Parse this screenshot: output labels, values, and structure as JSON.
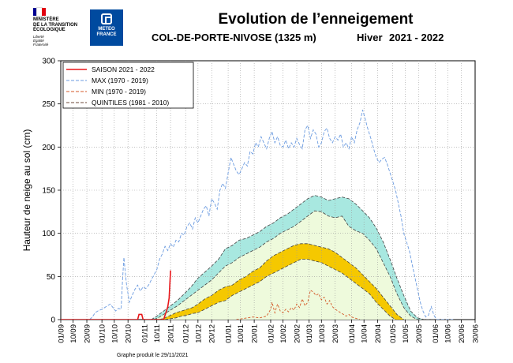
{
  "header": {
    "rf_lines": "MINISTÈRE\nDE LA TRANSITION\nÉCOLOGIQUE",
    "rf_motto": "Liberté\nÉgalité\nFraternité",
    "mf_label": "METEO\nFRANCE",
    "title": "Evolution de l’enneigement",
    "station": "COL-DE-PORTE-NIVOSE (1325 m)",
    "season_label": "Hiver",
    "season_years": "2021 - 2022",
    "flag_colors": [
      "#000091",
      "#ffffff",
      "#e1000f"
    ],
    "brand_color": "#004a9f"
  },
  "footer": {
    "produced": "Graphe produit le 29/11/2021"
  },
  "chart_data": {
    "type": "line",
    "ylabel": "Hauteur de neige au sol (cm)",
    "xlabel": "",
    "ylim": [
      0,
      300
    ],
    "yticks": [
      0,
      50,
      100,
      150,
      200,
      250,
      300
    ],
    "x_ticks": [
      "01/09",
      "10/09",
      "20/09",
      "01/10",
      "10/10",
      "20/10",
      "01/11",
      "10/11",
      "20/11",
      "01/12",
      "10/12",
      "20/12",
      "01/01",
      "10/01",
      "20/01",
      "01/02",
      "10/02",
      "20/02",
      "01/03",
      "10/03",
      "20/03",
      "01/04",
      "10/04",
      "20/04",
      "01/05",
      "10/05",
      "20/05",
      "01/06",
      "10/06",
      "20/06",
      "30/06"
    ],
    "tick_days": [
      0,
      9,
      19,
      30,
      39,
      49,
      61,
      70,
      80,
      91,
      100,
      110,
      122,
      131,
      141,
      153,
      162,
      172,
      181,
      190,
      200,
      212,
      221,
      231,
      242,
      251,
      261,
      273,
      282,
      292,
      302
    ],
    "x_range_days": [
      0,
      302
    ],
    "legend": [
      {
        "name": "SAISON 2021 - 2022",
        "color": "#e8161a",
        "style": "solid"
      },
      {
        "name": "MAX (1970 - 2019)",
        "color": "#6b9be0",
        "style": "dashed"
      },
      {
        "name": "MIN (1970 - 2019)",
        "color": "#d45a2a",
        "style": "dashed"
      },
      {
        "name": "QUINTILES (1981 - 2010)",
        "color": "#6e4a3a",
        "style": "dashed"
      }
    ],
    "band_colors": {
      "outer": "#a8e8e0",
      "middle": "#eefadc",
      "inner": "#f5c800",
      "quintile_line": "#444444"
    },
    "series": [
      {
        "name": "SAISON 2021 - 2022",
        "x": [
          0,
          56,
          57,
          59,
          60,
          62,
          75,
          76,
          77,
          78,
          79,
          80
        ],
        "y": [
          0,
          0,
          6,
          6,
          0,
          0,
          0,
          5,
          10,
          15,
          25,
          57
        ]
      },
      {
        "name": "MAX (1970 - 2019)",
        "x": [
          21,
          23,
          25,
          27,
          30,
          33,
          36,
          38,
          40,
          42,
          44,
          45,
          46,
          47,
          48,
          49,
          50,
          52,
          54,
          56,
          58,
          60,
          62,
          64,
          66,
          68,
          70,
          72,
          74,
          76,
          78,
          80,
          82,
          84,
          86,
          88,
          90,
          92,
          94,
          96,
          98,
          100,
          102,
          104,
          106,
          108,
          110,
          112,
          114,
          116,
          118,
          120,
          122,
          124,
          126,
          128,
          130,
          132,
          134,
          136,
          138,
          140,
          142,
          144,
          146,
          148,
          150,
          152,
          154,
          156,
          158,
          160,
          162,
          164,
          166,
          168,
          170,
          172,
          174,
          176,
          178,
          180,
          182,
          184,
          186,
          188,
          190,
          192,
          194,
          196,
          198,
          200,
          202,
          204,
          206,
          208,
          210,
          212,
          214,
          216,
          218,
          220,
          222,
          224,
          226,
          228,
          230,
          232,
          234,
          236,
          238,
          240,
          242,
          244,
          246,
          248,
          250,
          252,
          254,
          256,
          258,
          260,
          262,
          264,
          266,
          268,
          270,
          272,
          274,
          276,
          278,
          280,
          282,
          284,
          286
        ],
        "y": [
          0,
          3,
          8,
          10,
          12,
          15,
          18,
          14,
          10,
          13,
          12,
          45,
          72,
          55,
          40,
          30,
          20,
          28,
          35,
          40,
          33,
          38,
          36,
          40,
          46,
          52,
          58,
          70,
          76,
          85,
          80,
          88,
          84,
          92,
          90,
          100,
          98,
          108,
          112,
          105,
          118,
          112,
          120,
          128,
          132,
          120,
          140,
          135,
          128,
          150,
          158,
          152,
          170,
          188,
          180,
          172,
          168,
          175,
          182,
          178,
          195,
          192,
          205,
          200,
          212,
          205,
          198,
          210,
          218,
          205,
          212,
          202,
          200,
          208,
          198,
          205,
          200,
          210,
          203,
          198,
          220,
          225,
          210,
          220,
          215,
          200,
          205,
          218,
          222,
          210,
          205,
          212,
          208,
          215,
          200,
          205,
          198,
          212,
          205,
          220,
          228,
          243,
          232,
          220,
          210,
          198,
          188,
          182,
          186,
          188,
          180,
          170,
          160,
          150,
          135,
          120,
          100,
          90,
          80,
          65,
          50,
          35,
          20,
          10,
          3,
          5,
          15,
          5,
          0,
          0,
          0,
          0,
          0,
          0,
          0
        ]
      },
      {
        "name": "MIN (1970 - 2019)",
        "x": [
          128,
          132,
          136,
          140,
          145,
          150,
          153,
          154,
          155,
          156,
          157,
          158,
          160,
          162,
          164,
          166,
          168,
          170,
          172,
          174,
          176,
          178,
          180,
          181,
          182,
          184,
          186,
          188,
          190,
          192,
          194,
          196,
          198,
          200,
          202,
          204,
          206,
          208,
          210,
          212,
          214,
          216,
          218
        ],
        "y": [
          0,
          1,
          2,
          3,
          2,
          4,
          12,
          20,
          14,
          8,
          13,
          18,
          10,
          8,
          12,
          9,
          14,
          11,
          18,
          14,
          24,
          16,
          20,
          28,
          34,
          32,
          28,
          30,
          23,
          26,
          18,
          22,
          15,
          12,
          10,
          8,
          6,
          4,
          6,
          3,
          2,
          1,
          0
        ]
      },
      {
        "name": "Q0",
        "x": [
          66,
          70,
          75,
          80,
          85,
          90,
          95,
          100,
          105,
          110,
          115,
          120,
          125,
          130,
          135,
          140,
          145,
          150,
          155,
          160,
          165,
          170,
          175,
          180,
          185,
          190,
          195,
          200,
          205,
          210,
          215,
          220,
          225,
          230,
          235,
          240,
          245,
          250,
          255,
          260,
          265,
          270,
          275
        ],
        "y": [
          0,
          4,
          10,
          16,
          22,
          30,
          38,
          48,
          55,
          62,
          70,
          82,
          86,
          92,
          94,
          98,
          102,
          108,
          112,
          118,
          122,
          128,
          134,
          140,
          144,
          142,
          138,
          140,
          142,
          140,
          134,
          126,
          118,
          106,
          90,
          70,
          48,
          28,
          10,
          2,
          0,
          0,
          0
        ]
      },
      {
        "name": "Q1",
        "x": [
          68,
          72,
          76,
          80,
          85,
          90,
          95,
          100,
          105,
          110,
          115,
          120,
          125,
          130,
          135,
          140,
          145,
          150,
          155,
          160,
          165,
          170,
          175,
          180,
          185,
          190,
          195,
          200,
          205,
          210,
          215,
          220,
          225,
          230,
          235,
          240,
          245,
          250,
          255,
          260,
          265,
          270
        ],
        "y": [
          0,
          3,
          7,
          11,
          16,
          22,
          28,
          34,
          40,
          46,
          54,
          62,
          66,
          72,
          76,
          80,
          84,
          90,
          94,
          100,
          104,
          108,
          114,
          120,
          126,
          125,
          120,
          118,
          120,
          108,
          103,
          100,
          92,
          82,
          66,
          50,
          30,
          14,
          4,
          0,
          0,
          0
        ]
      },
      {
        "name": "Q2",
        "x": [
          72,
          76,
          80,
          84,
          88,
          92,
          96,
          100,
          105,
          110,
          115,
          120,
          125,
          130,
          135,
          140,
          145,
          150,
          155,
          160,
          165,
          170,
          175,
          180,
          185,
          190,
          195,
          200,
          205,
          210,
          215,
          220,
          225,
          230,
          235,
          240,
          245,
          250
        ],
        "y": [
          0,
          2,
          5,
          8,
          10,
          12,
          14,
          18,
          24,
          28,
          34,
          38,
          40,
          46,
          50,
          56,
          60,
          68,
          74,
          78,
          82,
          86,
          88,
          88,
          86,
          84,
          82,
          78,
          72,
          66,
          60,
          52,
          44,
          36,
          26,
          16,
          6,
          0
        ]
      },
      {
        "name": "Q3",
        "x": [
          76,
          80,
          84,
          88,
          92,
          96,
          100,
          105,
          110,
          115,
          120,
          125,
          130,
          135,
          140,
          145,
          150,
          155,
          160,
          165,
          170,
          175,
          180,
          185,
          190,
          195,
          200,
          205,
          210,
          215,
          220,
          225,
          230,
          235,
          240,
          244
        ],
        "y": [
          0,
          1,
          2,
          4,
          5,
          7,
          8,
          12,
          16,
          20,
          22,
          28,
          32,
          36,
          40,
          44,
          50,
          54,
          58,
          62,
          66,
          70,
          70,
          68,
          66,
          62,
          58,
          54,
          48,
          42,
          36,
          30,
          20,
          12,
          4,
          0
        ]
      }
    ]
  }
}
